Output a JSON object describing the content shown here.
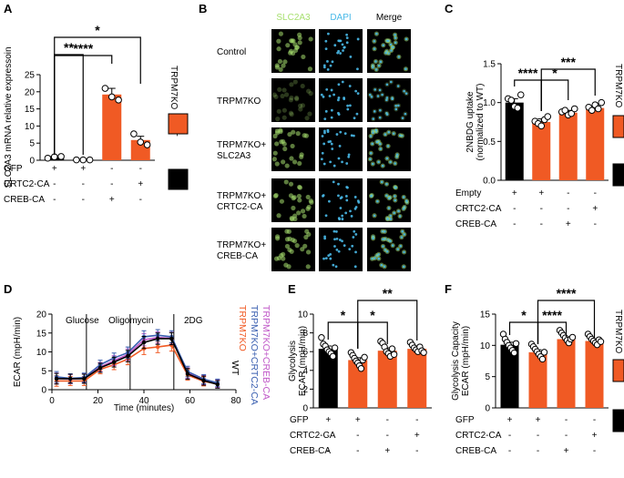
{
  "colors": {
    "ko": "#f05a24",
    "wt": "#000000",
    "ctrc2": "#3a5fb0",
    "creb": "#c058c8",
    "slc": "#a8e070",
    "dapi": "#49b9e8",
    "orange_legend": "#f05a24"
  },
  "panels": {
    "a": "A",
    "b": "B",
    "c": "C",
    "d": "D",
    "e": "E",
    "f": "F"
  },
  "legend": {
    "ko": "TRPM7KO",
    "wt": "WT"
  },
  "chartA": {
    "type": "bar",
    "ylabel": "SLC2A3 mRNA relative expressoin",
    "ylim": [
      0,
      25
    ],
    "ticks": [
      "0",
      "5",
      "10",
      "15",
      "20",
      "25"
    ],
    "categories": [
      "WT GFP",
      "TRPM7KO GFP",
      "TRPM7KO CREB-CA",
      "TRPM7KO CRTC2-CA"
    ],
    "values": [
      1,
      0.1,
      19.2,
      5.9
    ],
    "errors": [
      0.2,
      0.1,
      1.8,
      1.1
    ],
    "points": [
      [
        0.6,
        1.0,
        1.1
      ],
      [
        0.1,
        0.1,
        0.1
      ],
      [
        21,
        18.5,
        17.6
      ],
      [
        7.7,
        5.3,
        4.5
      ]
    ],
    "sig": [
      "**",
      "****",
      "*"
    ],
    "rows": [
      {
        "label": "GFP",
        "marks": [
          "+",
          "+",
          "-",
          "-"
        ]
      },
      {
        "label": "CRTC2-CA",
        "marks": [
          "-",
          "-",
          "-",
          "+"
        ]
      },
      {
        "label": "CREB-CA",
        "marks": [
          "-",
          "-",
          "+",
          "-"
        ]
      }
    ]
  },
  "microscopy": {
    "headers": [
      "SLC2A3",
      "DAPI",
      "Merge"
    ],
    "rows": [
      "Control",
      "TRPM7KO",
      "TRPM7KO+|SLC2A3",
      "TRPM7KO+|CRTC2-CA",
      "TRPM7KO+|CREB-CA"
    ]
  },
  "chartC": {
    "type": "bar",
    "ylabel1": "2NBDG uptake",
    "ylabel2": "(normalized to WT)",
    "ylim": [
      0,
      1.5
    ],
    "ticks": [
      "0.0",
      "0.5",
      "1.0",
      "1.5"
    ],
    "categories": [
      "WT Empty",
      "TRPM7KO Empty",
      "TRPM7KO CREB-CA",
      "TRPM7KO CRTC2-CA"
    ],
    "values": [
      1.0,
      0.75,
      0.87,
      0.93
    ],
    "errors": [
      0.05,
      0.04,
      0.03,
      0.03
    ],
    "points": [
      [
        1.05,
        1.03,
        0.95,
        0.93,
        1.1
      ],
      [
        0.76,
        0.73,
        0.7,
        0.78,
        0.82
      ],
      [
        0.88,
        0.9,
        0.84,
        0.86,
        0.92
      ],
      [
        0.94,
        0.9,
        0.97,
        0.92,
        1.0
      ]
    ],
    "sig": [
      "****",
      "*",
      "***"
    ],
    "rows": [
      {
        "label": "Empty",
        "marks": [
          "+",
          "+",
          "-",
          "-"
        ]
      },
      {
        "label": "CRTC2-CA",
        "marks": [
          "-",
          "-",
          "-",
          "+"
        ]
      },
      {
        "label": "CREB-CA",
        "marks": [
          "-",
          "-",
          "+",
          "-"
        ]
      }
    ]
  },
  "chartD": {
    "type": "line",
    "ylabel": "ECAR (mpH/min)",
    "xlabel": "Time (minutes)",
    "xlim": [
      0,
      80
    ],
    "ylim": [
      0,
      20
    ],
    "xticks": [
      "0",
      "20",
      "40",
      "60",
      "80"
    ],
    "yticks": [
      "0",
      "5",
      "10",
      "15",
      "20"
    ],
    "annotations": [
      "Glucose",
      "Oligomycin",
      "2DG"
    ],
    "injections": [
      15,
      34,
      53
    ],
    "x": [
      2,
      8,
      14,
      21,
      27,
      33,
      40,
      46,
      52,
      59,
      66,
      72
    ],
    "series": [
      {
        "name": "WT",
        "color": "#000000",
        "values": [
          2.9,
          2.9,
          2.9,
          5.8,
          7.3,
          8.9,
          12.5,
          13.5,
          13.5,
          4.2,
          2.4,
          1.4
        ]
      },
      {
        "name": "TRPM7KO",
        "color": "#f05a24",
        "values": [
          2.3,
          2.3,
          2.3,
          5.4,
          6.6,
          8.1,
          10.9,
          11.3,
          11.8,
          3.9,
          2.2,
          1.5
        ]
      },
      {
        "name": "TRPM7KO+CRTC2-CA",
        "color": "#3a5fb0",
        "values": [
          3.4,
          3.0,
          3.2,
          6.6,
          8.4,
          9.8,
          14.0,
          14.4,
          14.0,
          4.8,
          2.8,
          1.8
        ]
      },
      {
        "name": "TRPM7KO+CREB-CA",
        "color": "#c058c8",
        "values": [
          3.0,
          2.8,
          3.0,
          6.0,
          7.7,
          9.3,
          13.2,
          13.8,
          13.6,
          4.4,
          2.6,
          1.6
        ]
      }
    ],
    "errors": [
      1.4,
      1.2,
      1.2,
      1.2,
      1.3,
      1.5,
      1.6,
      1.5,
      1.6,
      1.4,
      1.2,
      1.0
    ]
  },
  "chartE": {
    "type": "bar",
    "ylabel1": "Glycolysis",
    "ylabel2": "ECAR (mpH/min)",
    "ylim": [
      0,
      10
    ],
    "ticks": [
      "0",
      "2",
      "4",
      "6",
      "8",
      "10"
    ],
    "categories": [
      "WT GFP",
      "TRPM7KO GFP",
      "TRPM7KO CREB-CA",
      "TRPM7KO CRTC2-CA"
    ],
    "values": [
      6.3,
      5.1,
      6.1,
      6.3
    ],
    "errors": [
      0.3,
      0.25,
      0.3,
      0.2
    ],
    "points": [
      [
        7.5,
        6.8,
        6.6,
        6.2,
        6.0,
        5.8,
        5.5,
        6.4
      ],
      [
        5.9,
        5.6,
        5.3,
        5.0,
        4.8,
        4.5,
        4.2,
        5.1,
        5.4
      ],
      [
        7.1,
        6.9,
        6.5,
        6.0,
        5.8,
        5.5,
        6.3,
        5.7
      ],
      [
        7.0,
        6.7,
        6.4,
        6.2,
        6.0,
        6.5,
        6.1,
        5.9
      ]
    ],
    "sig": [
      "*",
      "*",
      "**"
    ],
    "rows": [
      {
        "label": "GFP",
        "marks": [
          "+",
          "+",
          "-",
          "-"
        ]
      },
      {
        "label": "CRTC2-CA",
        "marks": [
          "-",
          "-",
          "-",
          "+"
        ]
      },
      {
        "label": "CREB-CA",
        "marks": [
          "-",
          "-",
          "+",
          "-"
        ]
      }
    ]
  },
  "chartF": {
    "type": "bar",
    "ylabel1": "Glycolysis Capacity",
    "ylabel2": "ECAR (mpH/min)",
    "ylim": [
      0,
      15
    ],
    "ticks": [
      "0",
      "5",
      "10",
      "15"
    ],
    "categories": [
      "WT GFP",
      "TRPM7KO GFP",
      "TRPM7KO CREB-CA",
      "TRPM7KO CRTC2-CA"
    ],
    "values": [
      10.1,
      8.9,
      11.0,
      10.7
    ],
    "errors": [
      0.4,
      0.4,
      0.3,
      0.3
    ],
    "points": [
      [
        11.8,
        11.0,
        10.5,
        10.0,
        9.6,
        9.2,
        8.8,
        10.3
      ],
      [
        10.2,
        9.8,
        9.4,
        9.0,
        8.6,
        8.2,
        7.8,
        8.9
      ],
      [
        12.4,
        12.0,
        11.6,
        11.2,
        10.8,
        10.4,
        11.0,
        11.3
      ],
      [
        11.8,
        11.4,
        11.0,
        10.7,
        10.4,
        10.1,
        10.9,
        10.6
      ]
    ],
    "sig": [
      "*",
      "****",
      "****"
    ],
    "rows": [
      {
        "label": "GFP",
        "marks": [
          "+",
          "+",
          "-",
          "-"
        ]
      },
      {
        "label": "CRTC2-CA",
        "marks": [
          "-",
          "-",
          "-",
          "+"
        ]
      },
      {
        "label": "CREB-CA",
        "marks": [
          "-",
          "-",
          "+",
          "-"
        ]
      }
    ]
  }
}
